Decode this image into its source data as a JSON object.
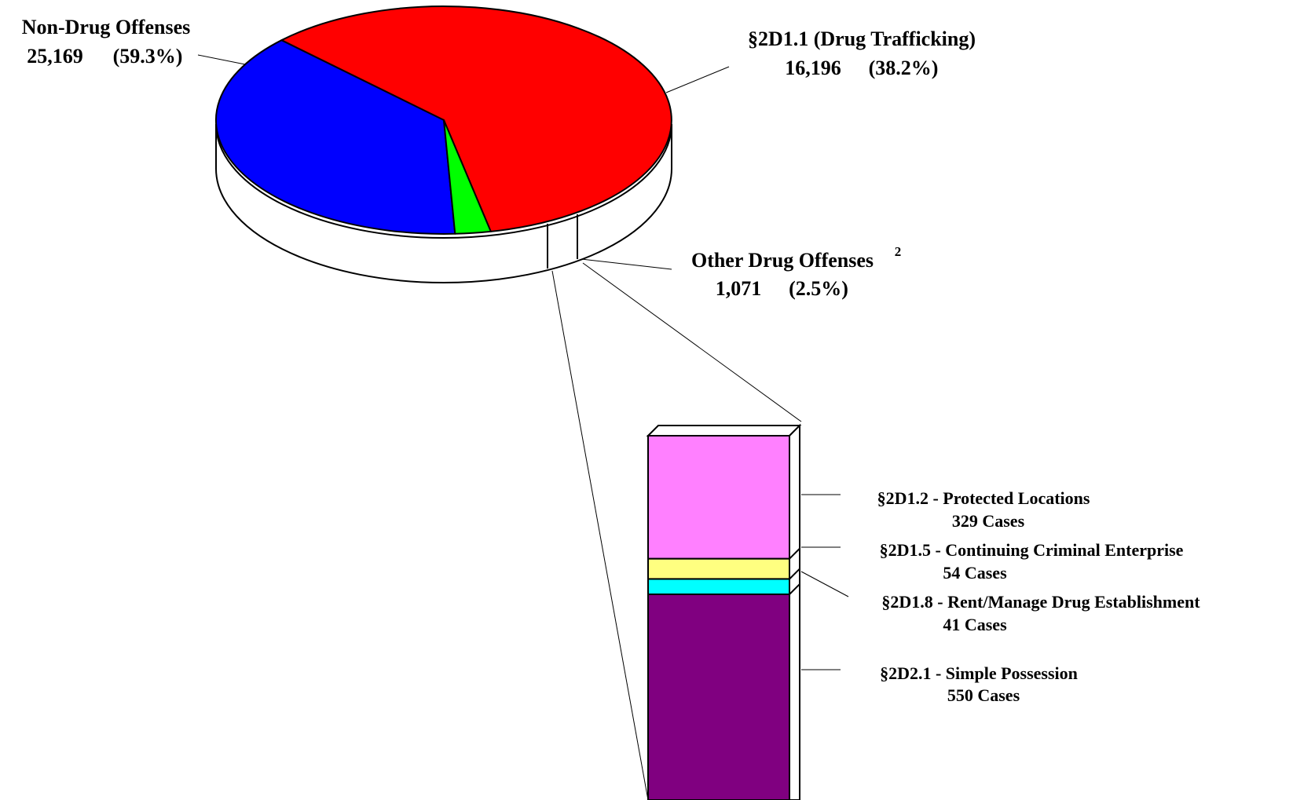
{
  "chart_data": [
    {
      "type": "pie",
      "slices": [
        {
          "name": "Non-Drug Offenses",
          "value": 25169,
          "percent": 59.3,
          "color": "#ff0000",
          "value_label": "25,169",
          "percent_label": "(59.3%)"
        },
        {
          "name": "§2D1.1 (Drug Trafficking)",
          "value": 16196,
          "percent": 38.2,
          "color": "#0000ff",
          "value_label": "16,196",
          "percent_label": "(38.2%)"
        },
        {
          "name": "Other Drug Offenses",
          "footnote": "2",
          "value": 1071,
          "percent": 2.5,
          "color": "#00ff00",
          "value_label": "1,071",
          "percent_label": "(2.5%)"
        }
      ]
    },
    {
      "type": "bar",
      "stacked": true,
      "segments": [
        {
          "name": "§2D1.2 - Protected Locations",
          "value": 329,
          "value_label": "329 Cases",
          "color": "#ff80ff"
        },
        {
          "name": "§2D1.5 - Continuing Criminal Enterprise",
          "value": 54,
          "value_label": "54 Cases",
          "color": "#ffff80"
        },
        {
          "name": "§2D1.8 - Rent/Manage Drug Establishment",
          "value": 41,
          "value_label": "41 Cases",
          "color": "#00ffff"
        },
        {
          "name": "§2D2.1 - Simple Possession",
          "value": 550,
          "value_label": "550 Cases",
          "color": "#800080"
        }
      ]
    }
  ]
}
